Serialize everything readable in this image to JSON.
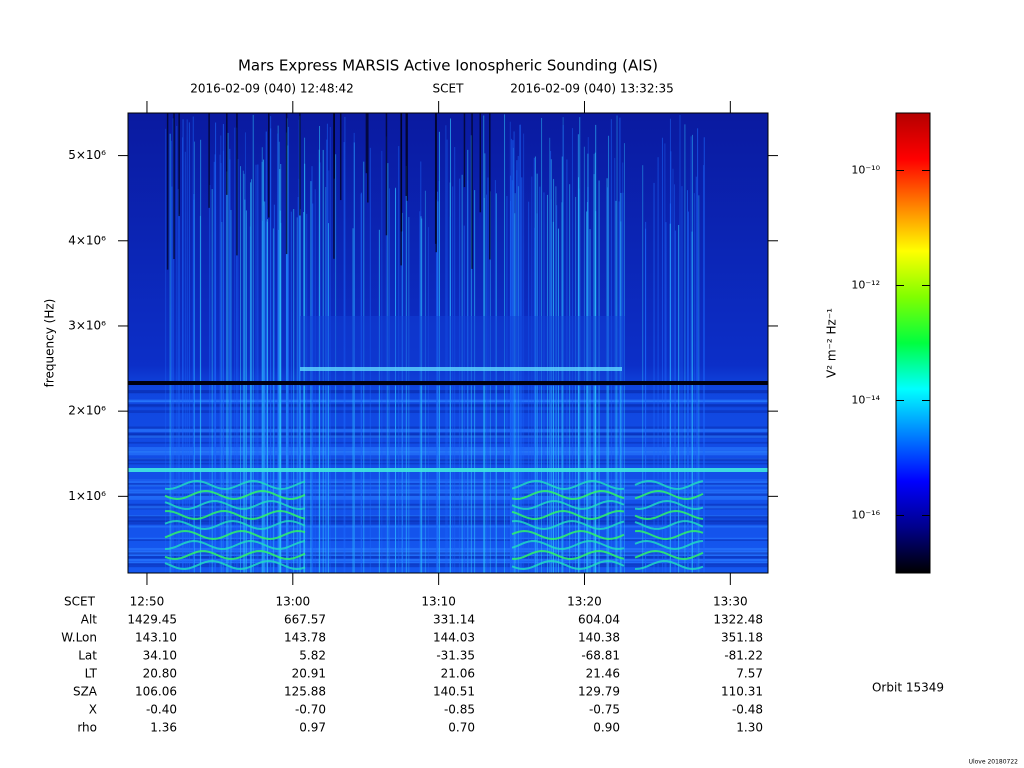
{
  "chart_data": {
    "type": "spectrogram",
    "title": "Mars Express MARSIS Active Ionospheric Sounding (AIS)",
    "start_time": "2016-02-09 (040) 12:48:42",
    "time_system": "SCET",
    "end_time": "2016-02-09 (040) 13:32:35",
    "y_label": "frequency (Hz)",
    "xlim": [
      768.7,
      812.5833
    ],
    "xticks": [
      {
        "value": 770,
        "label": "12:50"
      },
      {
        "value": 780,
        "label": "13:00"
      },
      {
        "value": 790,
        "label": "13:10"
      },
      {
        "value": 800,
        "label": "13:20"
      },
      {
        "value": 810,
        "label": "13:30"
      }
    ],
    "ylim": [
      100000,
      5500000
    ],
    "yticks": [
      {
        "value": 1000000,
        "label": "1×10⁶"
      },
      {
        "value": 2000000,
        "label": "2×10⁶"
      },
      {
        "value": 3000000,
        "label": "3×10⁶"
      },
      {
        "value": 4000000,
        "label": "4×10⁶"
      },
      {
        "value": 5000000,
        "label": "5×10⁶"
      }
    ],
    "colorbar": {
      "label": "V² m⁻² Hz⁻¹",
      "log": true,
      "lim": [
        1e-17,
        1e-09
      ],
      "ticks": [
        {
          "value": 1e-16,
          "label": "10⁻¹⁶"
        },
        {
          "value": 1e-14,
          "label": "10⁻¹⁴"
        },
        {
          "value": 1e-12,
          "label": "10⁻¹²"
        },
        {
          "value": 1e-10,
          "label": "10⁻¹⁰"
        }
      ],
      "colormap": [
        "#000000",
        "#00008c",
        "#0000ff",
        "#0080ff",
        "#00ffff",
        "#00ff40",
        "#80ff00",
        "#ffff00",
        "#ff8000",
        "#ff0000",
        "#b40000"
      ]
    },
    "ephemeris": {
      "time_label": "SCET",
      "rows": [
        {
          "label": "Alt",
          "values": [
            "1429.45",
            "667.57",
            "331.14",
            "604.04",
            "1322.48"
          ]
        },
        {
          "label": "W.Lon",
          "values": [
            "143.10",
            "143.78",
            "144.03",
            "140.38",
            "351.18"
          ]
        },
        {
          "label": "Lat",
          "values": [
            "34.10",
            "5.82",
            "-31.35",
            "-68.81",
            "-81.22"
          ]
        },
        {
          "label": "LT",
          "values": [
            "20.80",
            "20.91",
            "21.06",
            "21.46",
            "7.57"
          ]
        },
        {
          "label": "SZA",
          "values": [
            "106.06",
            "125.88",
            "140.51",
            "129.79",
            "110.31"
          ]
        },
        {
          "label": "X",
          "values": [
            "-0.40",
            "-0.70",
            "-0.85",
            "-0.75",
            "-0.48"
          ]
        },
        {
          "label": "rho",
          "values": [
            "1.36",
            "0.97",
            "0.70",
            "0.90",
            "1.30"
          ]
        }
      ]
    },
    "orbit": "Orbit 15349",
    "footer": "Ulove 20180722"
  }
}
